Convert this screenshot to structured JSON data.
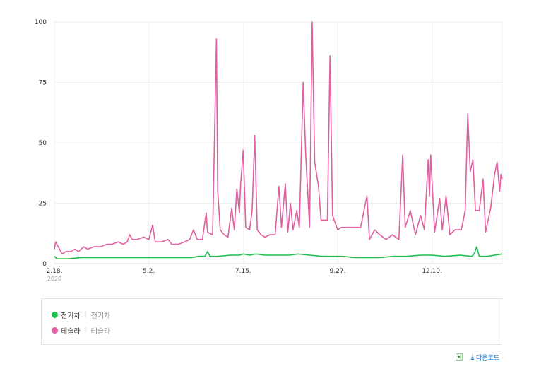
{
  "chart_data": {
    "type": "line",
    "title": "",
    "xlabel": "",
    "ylabel": "",
    "ylim": [
      0,
      100
    ],
    "yticks": [
      0,
      25,
      50,
      75,
      100
    ],
    "xlim": [
      "2020-02-18",
      "2021-02-03"
    ],
    "xticks": [
      {
        "date": "2020-02-18",
        "label": "2.18."
      },
      {
        "date": "2020-05-02",
        "label": "5.2."
      },
      {
        "date": "2020-07-15",
        "label": "7.15."
      },
      {
        "date": "2020-09-27",
        "label": "9.27."
      },
      {
        "date": "2020-12-10",
        "label": "12.10."
      }
    ],
    "year_label": "2020",
    "grid": true,
    "legend_position": "bottom",
    "series": [
      {
        "name": "전기차",
        "sub_label": "전기차",
        "color": "#1fbf4f",
        "points": [
          [
            "2020-02-18",
            3
          ],
          [
            "2020-02-20",
            2
          ],
          [
            "2020-02-28",
            2
          ],
          [
            "2020-03-10",
            2.5
          ],
          [
            "2020-03-25",
            2.5
          ],
          [
            "2020-04-10",
            2.5
          ],
          [
            "2020-04-25",
            2.5
          ],
          [
            "2020-05-02",
            2.5
          ],
          [
            "2020-05-15",
            2.5
          ],
          [
            "2020-05-25",
            2.5
          ],
          [
            "2020-06-05",
            2.5
          ],
          [
            "2020-06-10",
            3
          ],
          [
            "2020-06-15",
            3
          ],
          [
            "2020-06-17",
            5
          ],
          [
            "2020-06-19",
            3
          ],
          [
            "2020-06-25",
            3
          ],
          [
            "2020-07-05",
            3.5
          ],
          [
            "2020-07-12",
            3.5
          ],
          [
            "2020-07-15",
            4
          ],
          [
            "2020-07-20",
            3.5
          ],
          [
            "2020-07-25",
            4
          ],
          [
            "2020-08-01",
            3.5
          ],
          [
            "2020-08-10",
            3.5
          ],
          [
            "2020-08-20",
            3.5
          ],
          [
            "2020-08-27",
            4
          ],
          [
            "2020-09-05",
            3.5
          ],
          [
            "2020-09-15",
            3
          ],
          [
            "2020-09-25",
            3
          ],
          [
            "2020-10-01",
            3
          ],
          [
            "2020-10-10",
            2.5
          ],
          [
            "2020-10-20",
            2.5
          ],
          [
            "2020-10-30",
            2.5
          ],
          [
            "2020-11-10",
            3
          ],
          [
            "2020-11-20",
            3
          ],
          [
            "2020-12-01",
            3.5
          ],
          [
            "2020-12-10",
            3.5
          ],
          [
            "2020-12-20",
            3
          ],
          [
            "2021-01-01",
            3.5
          ],
          [
            "2021-01-10",
            3
          ],
          [
            "2021-01-12",
            4
          ],
          [
            "2021-01-14",
            7
          ],
          [
            "2021-01-16",
            3
          ],
          [
            "2021-01-22",
            3
          ],
          [
            "2021-01-28",
            3.5
          ],
          [
            "2021-02-03",
            4
          ]
        ]
      },
      {
        "name": "테슬라",
        "sub_label": "테슬라",
        "color": "#e060a0",
        "points": [
          [
            "2020-02-18",
            6
          ],
          [
            "2020-02-19",
            9
          ],
          [
            "2020-02-20",
            8
          ],
          [
            "2020-02-22",
            6
          ],
          [
            "2020-02-24",
            4
          ],
          [
            "2020-02-27",
            5
          ],
          [
            "2020-03-02",
            5
          ],
          [
            "2020-03-05",
            6
          ],
          [
            "2020-03-08",
            5
          ],
          [
            "2020-03-12",
            7
          ],
          [
            "2020-03-15",
            6
          ],
          [
            "2020-03-20",
            7
          ],
          [
            "2020-03-25",
            7
          ],
          [
            "2020-03-30",
            8
          ],
          [
            "2020-04-03",
            8
          ],
          [
            "2020-04-08",
            9
          ],
          [
            "2020-04-12",
            8
          ],
          [
            "2020-04-15",
            9
          ],
          [
            "2020-04-17",
            12
          ],
          [
            "2020-04-19",
            10
          ],
          [
            "2020-04-23",
            10
          ],
          [
            "2020-04-28",
            11
          ],
          [
            "2020-05-02",
            10
          ],
          [
            "2020-05-05",
            16
          ],
          [
            "2020-05-07",
            9
          ],
          [
            "2020-05-12",
            9
          ],
          [
            "2020-05-17",
            10
          ],
          [
            "2020-05-20",
            8
          ],
          [
            "2020-05-25",
            8
          ],
          [
            "2020-05-30",
            9
          ],
          [
            "2020-06-03",
            10
          ],
          [
            "2020-06-06",
            14
          ],
          [
            "2020-06-09",
            10
          ],
          [
            "2020-06-13",
            10
          ],
          [
            "2020-06-16",
            21
          ],
          [
            "2020-06-17",
            13
          ],
          [
            "2020-06-21",
            12
          ],
          [
            "2020-06-24",
            93
          ],
          [
            "2020-06-25",
            30
          ],
          [
            "2020-06-27",
            14
          ],
          [
            "2020-06-30",
            12
          ],
          [
            "2020-07-03",
            11
          ],
          [
            "2020-07-06",
            23
          ],
          [
            "2020-07-08",
            14
          ],
          [
            "2020-07-10",
            31
          ],
          [
            "2020-07-12",
            21
          ],
          [
            "2020-07-13",
            33
          ],
          [
            "2020-07-15",
            47
          ],
          [
            "2020-07-17",
            15
          ],
          [
            "2020-07-20",
            14
          ],
          [
            "2020-07-22",
            22
          ],
          [
            "2020-07-24",
            53
          ],
          [
            "2020-07-26",
            14
          ],
          [
            "2020-07-29",
            12
          ],
          [
            "2020-08-01",
            11
          ],
          [
            "2020-08-05",
            12
          ],
          [
            "2020-08-09",
            12
          ],
          [
            "2020-08-12",
            32
          ],
          [
            "2020-08-14",
            15
          ],
          [
            "2020-08-17",
            33
          ],
          [
            "2020-08-19",
            13
          ],
          [
            "2020-08-21",
            25
          ],
          [
            "2020-08-23",
            14
          ],
          [
            "2020-08-26",
            22
          ],
          [
            "2020-08-28",
            15
          ],
          [
            "2020-08-31",
            75
          ],
          [
            "2020-09-02",
            45
          ],
          [
            "2020-09-05",
            15
          ],
          [
            "2020-09-07",
            100
          ],
          [
            "2020-09-09",
            42
          ],
          [
            "2020-09-12",
            32
          ],
          [
            "2020-09-14",
            18
          ],
          [
            "2020-09-19",
            18
          ],
          [
            "2020-09-21",
            86
          ],
          [
            "2020-09-23",
            20
          ],
          [
            "2020-09-27",
            14
          ],
          [
            "2020-09-30",
            15
          ],
          [
            "2020-10-05",
            15
          ],
          [
            "2020-10-10",
            15
          ],
          [
            "2020-10-15",
            15
          ],
          [
            "2020-10-20",
            28
          ],
          [
            "2020-10-22",
            10
          ],
          [
            "2020-10-26",
            14
          ],
          [
            "2020-10-30",
            12
          ],
          [
            "2020-11-04",
            10
          ],
          [
            "2020-11-09",
            12
          ],
          [
            "2020-11-14",
            10
          ],
          [
            "2020-11-17",
            45
          ],
          [
            "2020-11-19",
            15
          ],
          [
            "2020-11-23",
            22
          ],
          [
            "2020-11-27",
            12
          ],
          [
            "2020-12-01",
            20
          ],
          [
            "2020-12-04",
            14
          ],
          [
            "2020-12-07",
            43
          ],
          [
            "2020-12-08",
            28
          ],
          [
            "2020-12-09",
            45
          ],
          [
            "2020-12-12",
            13
          ],
          [
            "2020-12-16",
            27
          ],
          [
            "2020-12-18",
            14
          ],
          [
            "2020-12-21",
            28
          ],
          [
            "2020-12-24",
            12
          ],
          [
            "2020-12-28",
            14
          ],
          [
            "2021-01-02",
            14
          ],
          [
            "2021-01-05",
            22
          ],
          [
            "2021-01-07",
            62
          ],
          [
            "2021-01-09",
            38
          ],
          [
            "2021-01-11",
            43
          ],
          [
            "2021-01-13",
            22
          ],
          [
            "2021-01-16",
            22
          ],
          [
            "2021-01-19",
            35
          ],
          [
            "2021-01-21",
            13
          ],
          [
            "2021-01-25",
            23
          ],
          [
            "2021-01-28",
            37
          ],
          [
            "2021-01-30",
            42
          ],
          [
            "2021-02-01",
            30
          ],
          [
            "2021-02-02",
            37
          ],
          [
            "2021-02-03",
            35
          ]
        ]
      }
    ]
  },
  "download": {
    "excel_icon_name": "excel-icon",
    "label": "다운로드"
  }
}
